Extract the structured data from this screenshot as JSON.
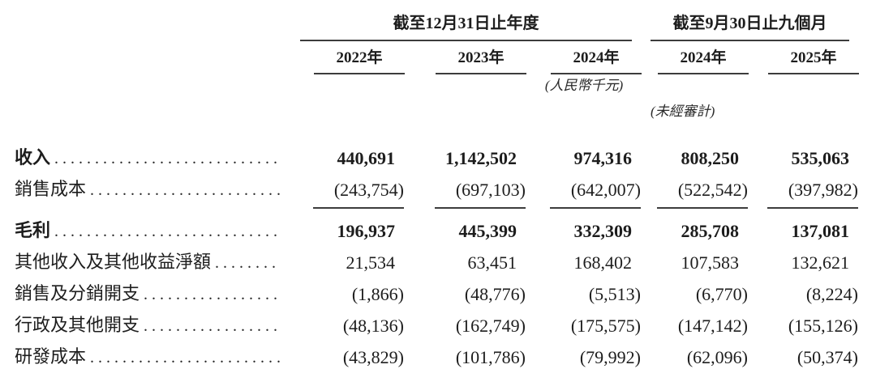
{
  "document": {
    "period_groups": [
      {
        "title": "截至12月31日止年度",
        "years": [
          "2022年",
          "2023年",
          "2024年"
        ]
      },
      {
        "title": "截至9月30日止九個月",
        "years": [
          "2024年",
          "2025年"
        ]
      }
    ],
    "currency_note": "(人民幣千元)",
    "audit_note": "(未經審計)",
    "rows": [
      {
        "label": "收入",
        "values": [
          "440,691",
          "1,142,502",
          "974,316",
          "808,250",
          "535,063"
        ]
      },
      {
        "label": "銷售成本",
        "values": [
          "(243,754)",
          "(697,103)",
          "(642,007)",
          "(522,542)",
          "(397,982)"
        ]
      },
      {
        "label": "毛利",
        "values": [
          "196,937",
          "445,399",
          "332,309",
          "285,708",
          "137,081"
        ]
      },
      {
        "label": "其他收入及其他收益淨額",
        "values": [
          "21,534",
          "63,451",
          "168,402",
          "107,583",
          "132,621"
        ]
      },
      {
        "label": "銷售及分銷開支",
        "values": [
          "(1,866)",
          "(48,776)",
          "(5,513)",
          "(6,770)",
          "(8,224)"
        ]
      },
      {
        "label": "行政及其他開支",
        "values": [
          "(48,136)",
          "(162,749)",
          "(175,575)",
          "(147,142)",
          "(155,126)"
        ]
      },
      {
        "label": "研發成本",
        "values": [
          "(43,829)",
          "(101,786)",
          "(79,992)",
          "(62,096)",
          "(50,374)"
        ]
      }
    ]
  }
}
